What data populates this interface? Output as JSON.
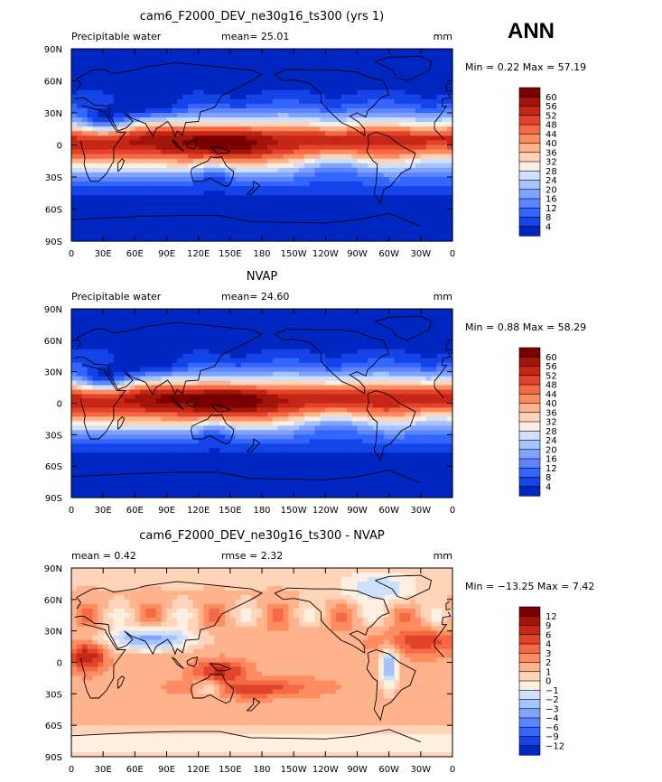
{
  "header": {
    "season": "ANN"
  },
  "colors": {
    "abs_scale": [
      "#000c7f",
      "#0026c2",
      "#1444e8",
      "#3366ff",
      "#5c85ff",
      "#7fa3ff",
      "#a6c2ff",
      "#cfe0ff",
      "#fdf0e0",
      "#ffd4b8",
      "#ffb38c",
      "#ff8c61",
      "#f56a45",
      "#e2442a",
      "#c52616",
      "#a11408",
      "#7a0000"
    ],
    "diff_scale": [
      "#000c7f",
      "#0026c2",
      "#1444e8",
      "#3366ff",
      "#5c85ff",
      "#7fa3ff",
      "#a6c2ff",
      "#cfe0ff",
      "#fdf0e0",
      "#ffd4b8",
      "#ffb38c",
      "#ff8c61",
      "#f56a45",
      "#e2442a",
      "#c52616",
      "#a11408",
      "#7a0000"
    ]
  },
  "chart_data": [
    {
      "type": "heatmap",
      "title": "cam6_F2000_DEV_ne30g16_ts300 (yrs 1)",
      "left_label": "Precipitable water",
      "stat_label": "mean=",
      "stat_value": "25.01",
      "units": "mm",
      "min_label": "Min =",
      "min_value": "0.22",
      "max_label": "Max =",
      "max_value": "57.19",
      "x_ticks": [
        "0",
        "30E",
        "60E",
        "90E",
        "120E",
        "150E",
        "180",
        "150W",
        "120W",
        "90W",
        "60W",
        "30W",
        "0"
      ],
      "y_ticks": [
        "90N",
        "60N",
        "30N",
        "0",
        "30S",
        "60S",
        "90S"
      ],
      "colorbar_levels": [
        "60",
        "56",
        "52",
        "48",
        "44",
        "40",
        "36",
        "32",
        "28",
        "24",
        "20",
        "16",
        "12",
        "8",
        "4"
      ],
      "field": "abs",
      "scale": 1.0
    },
    {
      "type": "heatmap",
      "title": "NVAP",
      "left_label": "Precipitable water",
      "stat_label": "mean=",
      "stat_value": "24.60",
      "units": "mm",
      "min_label": "Min =",
      "min_value": "0.88",
      "max_label": "Max =",
      "max_value": "58.29",
      "x_ticks": [
        "0",
        "30E",
        "60E",
        "90E",
        "120E",
        "150E",
        "180",
        "150W",
        "120W",
        "90W",
        "60W",
        "30W",
        "0"
      ],
      "y_ticks": [
        "90N",
        "60N",
        "30N",
        "0",
        "30S",
        "60S",
        "90S"
      ],
      "colorbar_levels": [
        "60",
        "56",
        "52",
        "48",
        "44",
        "40",
        "36",
        "32",
        "28",
        "24",
        "20",
        "16",
        "12",
        "8",
        "4"
      ],
      "field": "abs",
      "scale": 1.02
    },
    {
      "type": "heatmap",
      "title": "cam6_F2000_DEV_ne30g16_ts300 - NVAP",
      "left_label": "mean =",
      "left_value": "0.42",
      "stat_label": "rmse =",
      "stat_value": "2.32",
      "units": "mm",
      "min_label": "Min =",
      "min_value": "−13.25",
      "max_label": "Max =",
      "max_value": "7.42",
      "x_ticks": [
        "0",
        "30E",
        "60E",
        "90E",
        "120E",
        "150E",
        "180",
        "150W",
        "120W",
        "90W",
        "60W",
        "30W",
        "0"
      ],
      "y_ticks": [
        "90N",
        "60N",
        "30N",
        "0",
        "30S",
        "60S",
        "90S"
      ],
      "colorbar_levels": [
        "12",
        "9",
        "6",
        "4",
        "3",
        "2",
        "1",
        "0",
        "−1",
        "−2",
        "−3",
        "−4",
        "−6",
        "−9",
        "−12"
      ],
      "field": "diff",
      "scale": 1.0
    }
  ]
}
